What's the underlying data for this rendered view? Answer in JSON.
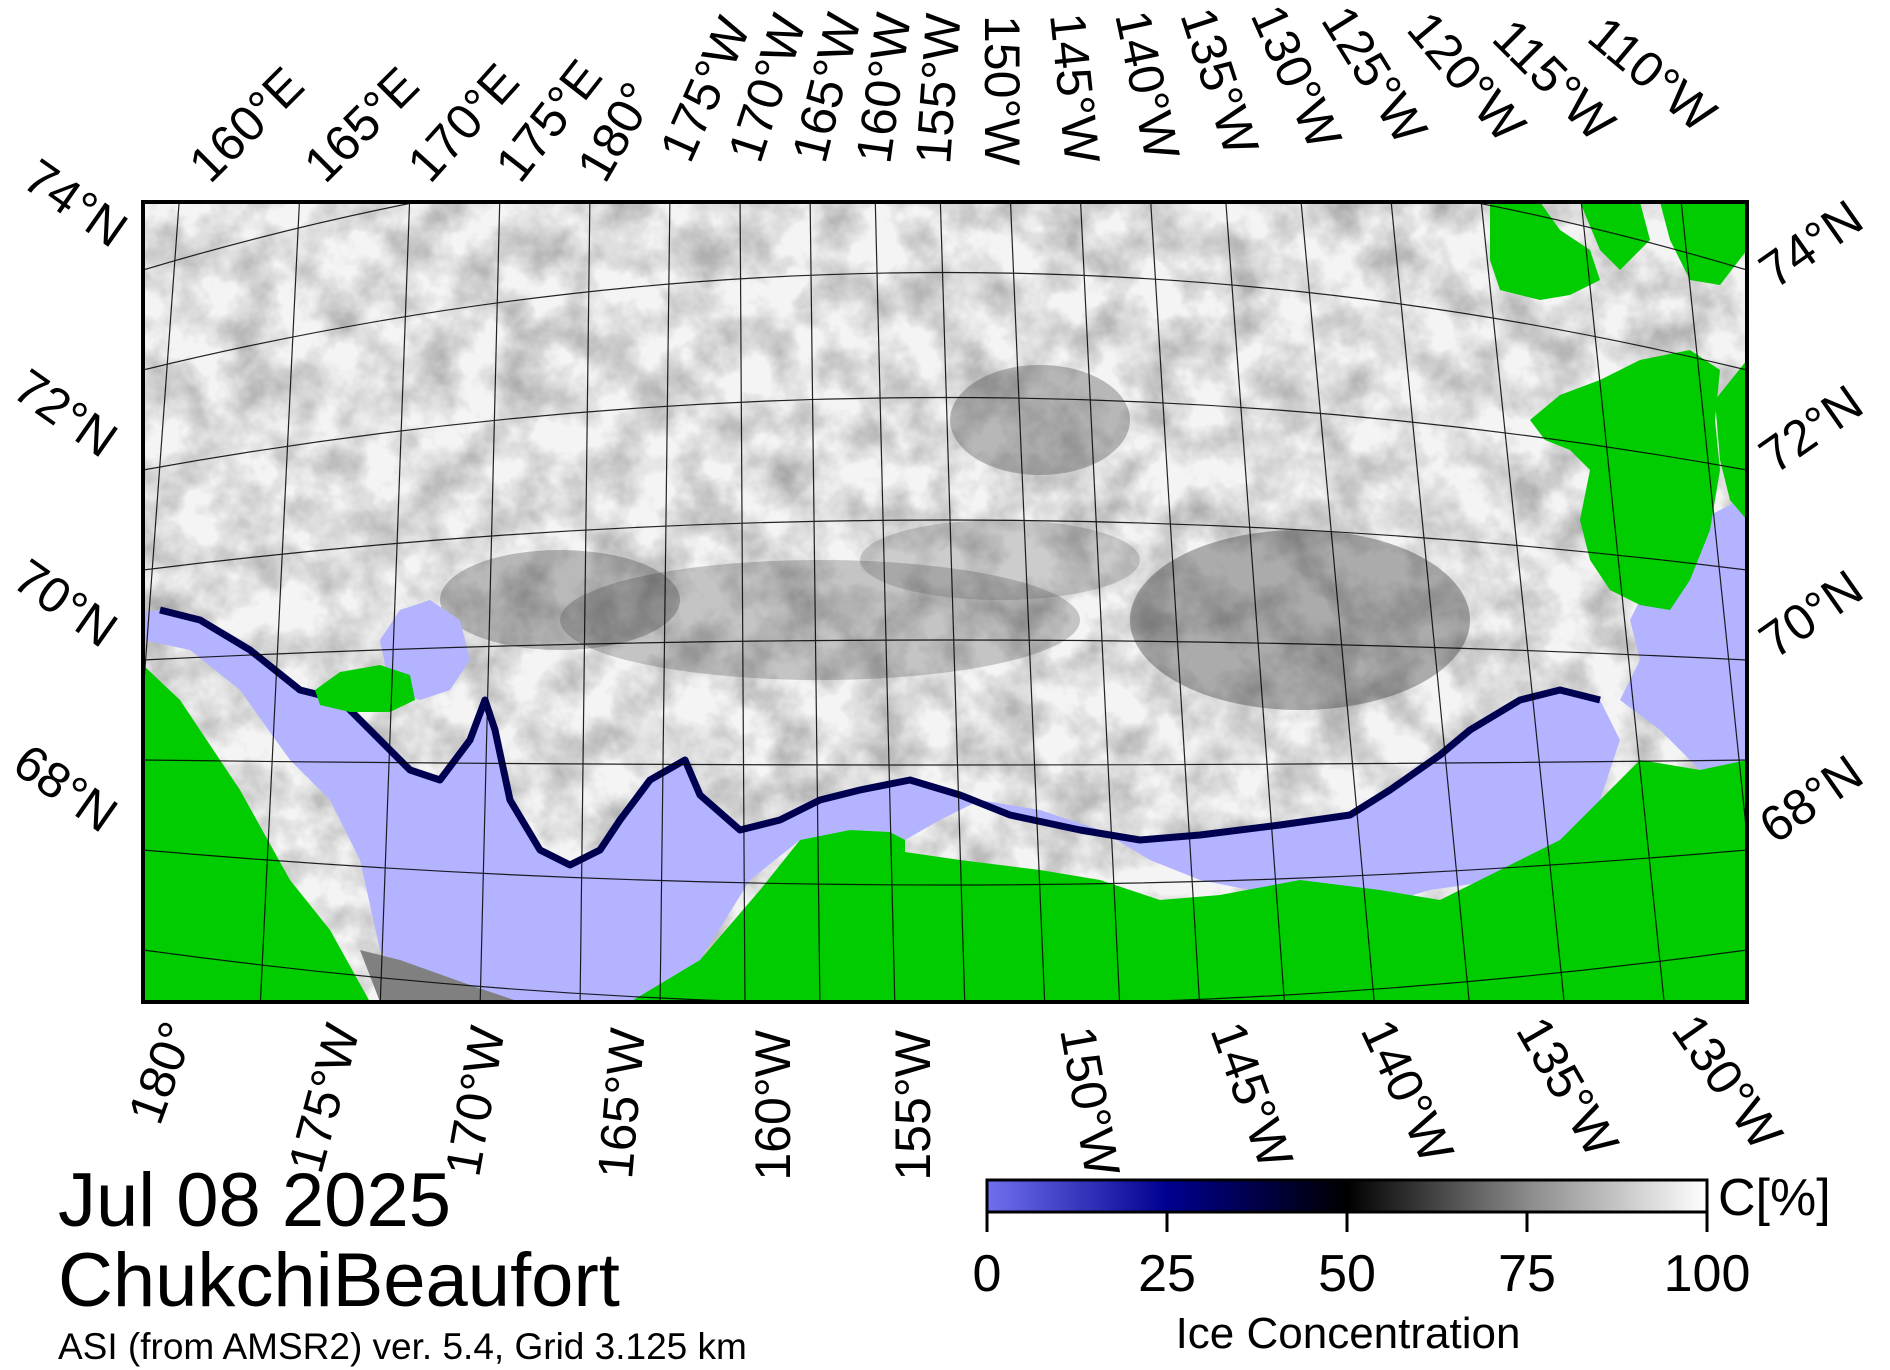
{
  "map": {
    "region": "ChukchiBeaufort",
    "date": "Jul 08 2025",
    "product": "ASI (from AMSR2) ver. 5.4,  Grid 3.125 km",
    "colors": {
      "land": "#00cc00",
      "open_water": "#b3b3ff",
      "no_data": "#808080",
      "ice_low": "#000050",
      "ice_mid": "#000000",
      "ice_high": "#ffffff"
    },
    "top_longitude_labels": [
      "160°E",
      "165°E",
      "170°E",
      "175°E",
      "180°",
      "175°W",
      "170°W",
      "165°W",
      "160°W",
      "155°W",
      "150°W",
      "145°W",
      "140°W",
      "135°W",
      "130°W",
      "125°W",
      "120°W",
      "115°W",
      "110°W"
    ],
    "bottom_longitude_labels": [
      "180°",
      "175°W",
      "170°W",
      "165°W",
      "160°W",
      "155°W",
      "150°W",
      "145°W",
      "140°W",
      "135°W",
      "130°W"
    ],
    "left_latitude_labels": [
      "74°N",
      "72°N",
      "70°N",
      "68°N"
    ],
    "right_latitude_labels": [
      "74°N",
      "72°N",
      "70°N",
      "68°N"
    ]
  },
  "colorbar": {
    "title": "Ice Concentration",
    "unit": "C[%]",
    "ticks": [
      "0",
      "25",
      "50",
      "75",
      "100"
    ],
    "range": [
      0,
      100
    ]
  }
}
